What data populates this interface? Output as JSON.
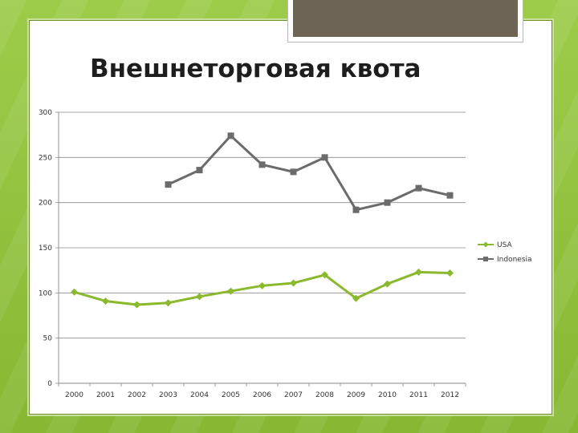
{
  "slide": {
    "title": "Внешнеторговая квота"
  },
  "chart_data": {
    "type": "line",
    "title": "Внешнеторговая квота",
    "xlabel": "",
    "ylabel": "",
    "categories": [
      "2000",
      "2001",
      "2002",
      "2003",
      "2004",
      "2005",
      "2006",
      "2007",
      "2008",
      "2009",
      "2010",
      "2011",
      "2012"
    ],
    "y_ticks": [
      0,
      50,
      100,
      150,
      200,
      250,
      300
    ],
    "ylim": [
      0,
      300
    ],
    "grid": true,
    "legend_position": "right",
    "series": [
      {
        "name": "USA",
        "color": "#8ab92d",
        "marker": "diamond",
        "values": [
          101,
          91,
          87,
          89,
          96,
          102,
          108,
          111,
          120,
          94,
          110,
          123,
          122
        ]
      },
      {
        "name": "Indonesia",
        "color": "#6b6b6b",
        "marker": "square",
        "values": [
          null,
          null,
          null,
          220,
          236,
          274,
          242,
          234,
          250,
          192,
          200,
          216,
          208
        ]
      }
    ]
  }
}
